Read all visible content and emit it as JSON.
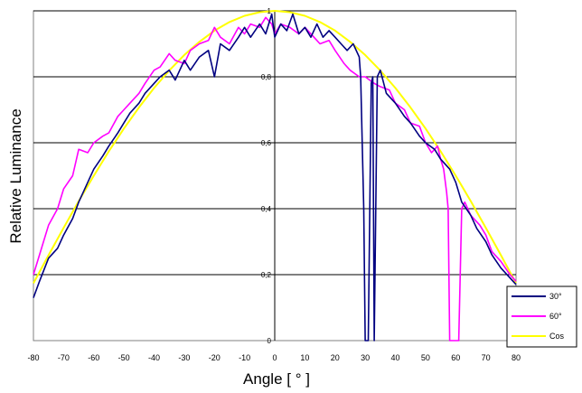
{
  "chart_data": {
    "type": "line",
    "title": "",
    "xlabel": "Angle [ ° ]",
    "ylabel": "Relative Luminance",
    "xlim": [
      -80,
      80
    ],
    "ylim": [
      0,
      1
    ],
    "x_ticks": [
      -80,
      -70,
      -60,
      -50,
      -40,
      -30,
      -20,
      -10,
      0,
      10,
      20,
      30,
      40,
      50,
      60,
      70,
      80
    ],
    "x_tick_labels": [
      "-80",
      "-70",
      "-60",
      "-50",
      "-40",
      "-30",
      "-20",
      "-10",
      "0",
      "10",
      "20",
      "30",
      "40",
      "50",
      "60",
      "70",
      "80"
    ],
    "y_ticks": [
      0,
      0.2,
      0.4,
      0.6,
      0.8,
      1
    ],
    "y_tick_labels": [
      "0",
      "0,2",
      "0,4",
      "0,6",
      "0,8",
      "1"
    ],
    "grid": "horizontal",
    "legend_position": "bottom-right",
    "series": [
      {
        "name": "30°",
        "color": "#000080",
        "x": [
          -80,
          -78,
          -75,
          -72,
          -70,
          -67,
          -65,
          -62,
          -60,
          -57,
          -55,
          -52,
          -50,
          -48,
          -45,
          -43,
          -40,
          -38,
          -35,
          -33,
          -30,
          -28,
          -25,
          -22,
          -20,
          -18,
          -15,
          -12,
          -10,
          -8,
          -5,
          -3,
          -1,
          0,
          2,
          4,
          6,
          8,
          10,
          12,
          14,
          16,
          18,
          20,
          22,
          24,
          26,
          28,
          28.5,
          29.5,
          30,
          31,
          32,
          32.5,
          33,
          34,
          35,
          37,
          40,
          43,
          45,
          48,
          50,
          53,
          55,
          58,
          60,
          62,
          65,
          67,
          70,
          72,
          75,
          78,
          80
        ],
        "values": [
          0.13,
          0.18,
          0.25,
          0.28,
          0.32,
          0.37,
          0.42,
          0.48,
          0.52,
          0.56,
          0.59,
          0.63,
          0.66,
          0.69,
          0.72,
          0.75,
          0.78,
          0.8,
          0.82,
          0.79,
          0.85,
          0.82,
          0.86,
          0.88,
          0.8,
          0.9,
          0.88,
          0.92,
          0.95,
          0.92,
          0.96,
          0.93,
          0.99,
          0.92,
          0.96,
          0.94,
          0.99,
          0.93,
          0.95,
          0.92,
          0.96,
          0.92,
          0.94,
          0.92,
          0.9,
          0.88,
          0.9,
          0.86,
          0.8,
          0.4,
          0.0,
          0.0,
          0.78,
          0.8,
          0.0,
          0.8,
          0.82,
          0.75,
          0.72,
          0.68,
          0.66,
          0.62,
          0.6,
          0.58,
          0.55,
          0.52,
          0.48,
          0.42,
          0.38,
          0.34,
          0.3,
          0.26,
          0.22,
          0.19,
          0.17
        ]
      },
      {
        "name": "60°",
        "color": "#ff00ff",
        "x": [
          -80,
          -78,
          -75,
          -72,
          -70,
          -67,
          -65,
          -62,
          -60,
          -57,
          -55,
          -52,
          -50,
          -48,
          -45,
          -43,
          -40,
          -38,
          -35,
          -33,
          -30,
          -28,
          -25,
          -22,
          -20,
          -18,
          -15,
          -12,
          -10,
          -8,
          -5,
          -3,
          -1,
          0,
          2,
          5,
          8,
          10,
          13,
          15,
          18,
          20,
          23,
          25,
          28,
          30,
          33,
          35,
          38,
          40,
          43,
          45,
          48,
          50,
          52,
          54,
          55,
          56,
          57,
          57.5,
          58,
          59,
          60,
          61,
          62,
          63,
          65,
          68,
          70,
          72,
          75,
          78,
          80
        ],
        "values": [
          0.2,
          0.26,
          0.35,
          0.4,
          0.46,
          0.5,
          0.58,
          0.57,
          0.6,
          0.62,
          0.63,
          0.68,
          0.7,
          0.72,
          0.75,
          0.78,
          0.82,
          0.83,
          0.87,
          0.85,
          0.84,
          0.88,
          0.9,
          0.91,
          0.95,
          0.92,
          0.9,
          0.95,
          0.93,
          0.96,
          0.95,
          0.98,
          0.96,
          0.93,
          0.96,
          0.95,
          0.93,
          0.95,
          0.92,
          0.9,
          0.91,
          0.88,
          0.84,
          0.82,
          0.8,
          0.8,
          0.78,
          0.77,
          0.76,
          0.72,
          0.7,
          0.66,
          0.65,
          0.6,
          0.57,
          0.59,
          0.55,
          0.52,
          0.45,
          0.4,
          0.0,
          0.0,
          0.0,
          0.0,
          0.4,
          0.42,
          0.38,
          0.35,
          0.32,
          0.27,
          0.24,
          0.2,
          0.18
        ]
      },
      {
        "name": "Cos",
        "color": "#ffff00",
        "x": [
          -80,
          -75,
          -70,
          -65,
          -60,
          -55,
          -50,
          -45,
          -40,
          -35,
          -30,
          -25,
          -20,
          -15,
          -10,
          -5,
          0,
          5,
          10,
          15,
          20,
          25,
          30,
          35,
          40,
          45,
          50,
          55,
          60,
          65,
          70,
          75,
          80
        ],
        "values": [
          0.174,
          0.259,
          0.342,
          0.423,
          0.5,
          0.574,
          0.643,
          0.707,
          0.766,
          0.819,
          0.866,
          0.906,
          0.94,
          0.966,
          0.985,
          0.996,
          1.0,
          0.996,
          0.985,
          0.966,
          0.94,
          0.906,
          0.866,
          0.819,
          0.766,
          0.707,
          0.643,
          0.574,
          0.5,
          0.423,
          0.342,
          0.259,
          0.174
        ]
      }
    ]
  }
}
